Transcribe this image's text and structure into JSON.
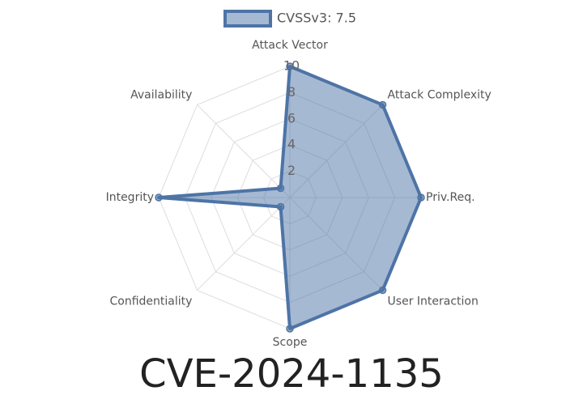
{
  "chart_data": {
    "type": "radar",
    "title": "CVE-2024-1135",
    "categories": [
      "Attack Vector",
      "Attack Complexity",
      "Priv.Req.",
      "User Interaction",
      "Scope",
      "Confidentiality",
      "Integrity",
      "Availability"
    ],
    "series": [
      {
        "name": "CVSSv3: 7.5",
        "color": "#4e74a6",
        "values": [
          10,
          10,
          10,
          10,
          10,
          1,
          10,
          1
        ]
      }
    ],
    "rlim": [
      0,
      10
    ],
    "rticks": [
      2,
      4,
      6,
      8,
      10
    ],
    "grid": true,
    "legend": "top"
  }
}
